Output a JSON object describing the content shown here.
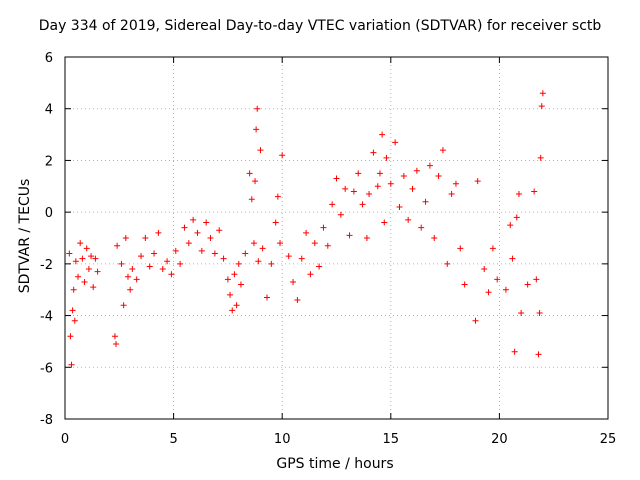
{
  "chart_data": {
    "type": "scatter",
    "title": "Day 334 of 2019, Sidereal Day-to-day VTEC variation (SDTVAR) for receiver sctb",
    "xlabel": "GPS time / hours",
    "ylabel": "SDTVAR / TECUs",
    "xlim": [
      0,
      25
    ],
    "ylim": [
      -8,
      6
    ],
    "xticks": [
      0,
      5,
      10,
      15,
      20,
      25
    ],
    "yticks": [
      -8,
      -6,
      -4,
      -2,
      0,
      2,
      4,
      6
    ],
    "grid": true,
    "marker": "+",
    "color": "#ff0000",
    "series": [
      {
        "name": "SDTVAR",
        "x": [
          0.2,
          0.25,
          0.3,
          0.35,
          0.4,
          0.45,
          0.5,
          0.6,
          0.7,
          0.8,
          0.9,
          1.0,
          1.1,
          1.2,
          1.3,
          1.4,
          1.5,
          2.3,
          2.35,
          2.4,
          2.6,
          2.7,
          2.8,
          2.9,
          3.0,
          3.1,
          3.3,
          3.5,
          3.7,
          3.9,
          4.1,
          4.3,
          4.5,
          4.7,
          4.9,
          5.1,
          5.3,
          5.5,
          5.7,
          5.9,
          6.1,
          6.3,
          6.5,
          6.7,
          6.9,
          7.1,
          7.3,
          7.5,
          7.6,
          7.7,
          7.8,
          7.9,
          8.0,
          8.1,
          8.3,
          8.5,
          8.6,
          8.7,
          8.75,
          8.8,
          8.85,
          8.9,
          9.0,
          9.1,
          9.3,
          9.5,
          9.7,
          9.8,
          9.9,
          10.0,
          10.3,
          10.5,
          10.7,
          10.9,
          11.1,
          11.3,
          11.5,
          11.7,
          11.9,
          12.1,
          12.3,
          12.5,
          12.7,
          12.9,
          13.1,
          13.3,
          13.5,
          13.7,
          13.9,
          14.0,
          14.2,
          14.4,
          14.5,
          14.6,
          14.7,
          14.8,
          15.0,
          15.2,
          15.4,
          15.6,
          15.8,
          16.0,
          16.2,
          16.4,
          16.6,
          16.8,
          17.0,
          17.2,
          17.4,
          17.6,
          17.8,
          18.0,
          18.2,
          18.4,
          18.9,
          19.0,
          19.3,
          19.5,
          19.7,
          19.9,
          20.3,
          20.5,
          20.6,
          20.7,
          20.8,
          20.9,
          21.0,
          21.3,
          21.6,
          21.7,
          21.8,
          21.85,
          21.9,
          21.95,
          22.0
        ],
        "y": [
          -1.6,
          -4.8,
          -5.9,
          -3.8,
          -3.0,
          -4.2,
          -1.9,
          -2.5,
          -1.2,
          -1.8,
          -2.7,
          -1.4,
          -2.2,
          -1.7,
          -2.9,
          -1.8,
          -2.3,
          -4.8,
          -5.1,
          -1.3,
          -2.0,
          -3.6,
          -1.0,
          -2.5,
          -3.0,
          -2.2,
          -2.6,
          -1.7,
          -1.0,
          -2.1,
          -1.6,
          -0.8,
          -2.2,
          -1.9,
          -2.4,
          -1.5,
          -2.0,
          -0.6,
          -1.2,
          -0.3,
          -0.8,
          -1.5,
          -0.4,
          -1.0,
          -1.6,
          -0.7,
          -1.8,
          -2.6,
          -3.2,
          -3.8,
          -2.4,
          -3.6,
          -2.0,
          -2.8,
          -1.6,
          1.5,
          0.5,
          -1.2,
          1.2,
          3.2,
          4.0,
          -1.9,
          2.4,
          -1.4,
          -3.3,
          -2.0,
          -0.4,
          0.6,
          -1.2,
          2.2,
          -1.7,
          -2.7,
          -3.4,
          -1.8,
          -0.8,
          -2.4,
          -1.2,
          -2.1,
          -0.6,
          -1.3,
          0.3,
          1.3,
          -0.1,
          0.9,
          -0.9,
          0.8,
          1.5,
          0.3,
          -1.0,
          0.7,
          2.3,
          1.0,
          1.5,
          3.0,
          -0.4,
          2.1,
          1.1,
          2.7,
          0.2,
          1.4,
          -0.3,
          0.9,
          1.6,
          -0.6,
          0.4,
          1.8,
          -1.0,
          1.4,
          2.4,
          -2.0,
          0.7,
          1.1,
          -1.4,
          -2.8,
          -4.2,
          1.2,
          -2.2,
          -3.1,
          -1.4,
          -2.6,
          -3.0,
          -0.5,
          -1.8,
          -5.4,
          -0.2,
          0.7,
          -3.9,
          -2.8,
          0.8,
          -2.6,
          -5.5,
          -3.9,
          2.1,
          4.1,
          4.6
        ]
      }
    ]
  }
}
